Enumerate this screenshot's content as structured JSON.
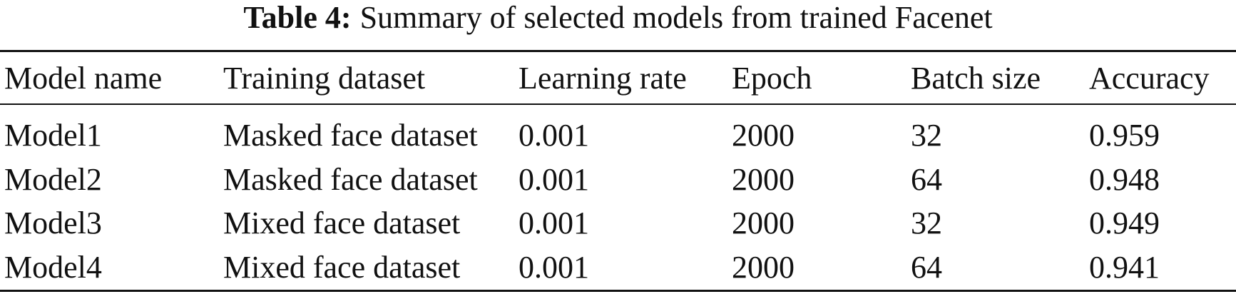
{
  "caption": {
    "label": "Table 4:",
    "text": "Summary of selected models from trained Facenet"
  },
  "table": {
    "header": [
      "Model name",
      "Training dataset",
      "Learning rate",
      "Epoch",
      "Batch size",
      "Accuracy"
    ],
    "rows": [
      [
        "Model1",
        "Masked face dataset",
        "0.001",
        "2000",
        "32",
        "0.959"
      ],
      [
        "Model2",
        "Masked face dataset",
        "0.001",
        "2000",
        "64",
        "0.948"
      ],
      [
        "Model3",
        "Mixed face dataset",
        "0.001",
        "2000",
        "32",
        "0.949"
      ],
      [
        "Model4",
        "Mixed face dataset",
        "0.001",
        "2000",
        "64",
        "0.941"
      ]
    ]
  }
}
